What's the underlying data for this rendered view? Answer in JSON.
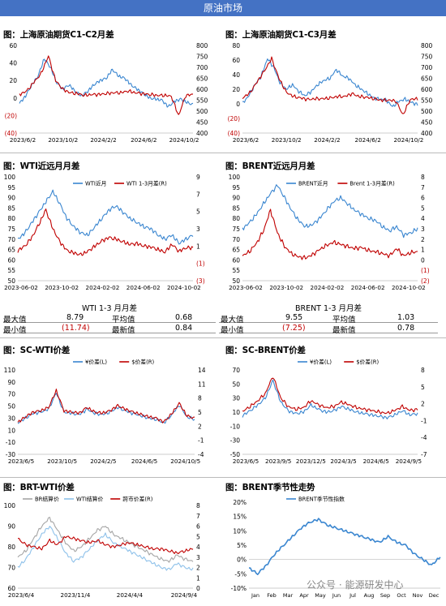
{
  "banner": "原油市场",
  "watermark": "公众号 · 能源研发中心",
  "colors": {
    "blue": "#3a86d0",
    "red": "#c00000",
    "gray": "#a5a5a5",
    "lightblue": "#8ec1ea",
    "banner": "#4472c4"
  },
  "panels": [
    {
      "title": "图：上海原油期货C1-C2月差",
      "chart_data": {
        "type": "line",
        "left_axis": {
          "ticks": [
            "60",
            "40",
            "20",
            "0",
            "(20)",
            "(40)"
          ],
          "min": -40,
          "max": 60,
          "red_ticks": [
            "(20)",
            "(40)"
          ]
        },
        "right_axis": {
          "ticks": [
            "800",
            "750",
            "700",
            "650",
            "600",
            "550",
            "500",
            "450",
            "400"
          ],
          "min": 400,
          "max": 800
        },
        "x_ticks": [
          "2023/6/2",
          "2023/10/2",
          "2024/2/2",
          "2024/6/2",
          "2024/10/2"
        ],
        "series": [
          {
            "axis": "right",
            "color": "blue",
            "start": 530,
            "values": [
              535,
              570,
              620,
              660,
              740,
              700,
              630,
              600,
              620,
              590,
              570,
              590,
              620,
              640,
              650,
              690,
              660,
              650,
              620,
              600,
              580,
              560,
              555,
              550,
              520,
              545,
              555,
              540,
              530
            ]
          },
          {
            "axis": "left",
            "color": "red",
            "start": 3,
            "values": [
              4,
              8,
              18,
              28,
              48,
              20,
              10,
              6,
              5,
              3,
              4,
              4,
              5,
              6,
              6,
              8,
              6,
              5,
              4,
              3,
              3,
              2,
              -20,
              3,
              4
            ]
          }
        ]
      }
    },
    {
      "title": "图：上海原油期货C1-C3月差",
      "chart_data": {
        "type": "line",
        "left_axis": {
          "ticks": [
            "80",
            "60",
            "40",
            "20",
            "0",
            "(20)",
            "(40)"
          ],
          "min": -40,
          "max": 80,
          "red_ticks": [
            "(20)",
            "(40)"
          ]
        },
        "right_axis": {
          "ticks": [
            "800",
            "750",
            "700",
            "650",
            "600",
            "550",
            "500",
            "450",
            "400"
          ],
          "min": 400,
          "max": 800
        },
        "x_ticks": [
          "2023/6/2",
          "2023/10/2",
          "2024/2/2",
          "2024/6/2",
          "2024/10/2"
        ],
        "series": [
          {
            "axis": "right",
            "color": "blue",
            "start": 530,
            "values": [
              535,
              570,
              620,
              660,
              740,
              700,
              630,
              600,
              620,
              590,
              570,
              590,
              620,
              640,
              650,
              690,
              660,
              650,
              620,
              600,
              580,
              560,
              555,
              550,
              520,
              545,
              555,
              540,
              530
            ]
          },
          {
            "axis": "left",
            "color": "red",
            "start": 6,
            "values": [
              8,
              15,
              30,
              45,
              62,
              35,
              16,
              10,
              8,
              6,
              7,
              7,
              8,
              10,
              10,
              14,
              10,
              9,
              7,
              5,
              5,
              4,
              -15,
              6,
              7
            ]
          }
        ]
      }
    },
    {
      "title": "图：WTI近远月月差",
      "chart_data": {
        "type": "line",
        "left_axis": {
          "ticks": [
            "100",
            "95",
            "90",
            "85",
            "80",
            "75",
            "70",
            "65",
            "60",
            "55",
            "50"
          ],
          "min": 50,
          "max": 100
        },
        "right_axis": {
          "ticks": [
            "9",
            "7",
            "5",
            "3",
            "1",
            "(1)",
            "(3)"
          ],
          "min": -3,
          "max": 9,
          "red_ticks": [
            "(1)",
            "(3)"
          ]
        },
        "x_ticks": [
          "2023-06-02",
          "2023-10-02",
          "2024-02-02",
          "2024-06-02",
          "2024-10-02"
        ],
        "legend": [
          "WTI近月",
          "WTI 1-3月差(R)"
        ],
        "series": [
          {
            "name": "WTI近月",
            "axis": "left",
            "color": "blue",
            "values": [
              70,
              73,
              78,
              83,
              88,
              93,
              87,
              80,
              76,
              73,
              72,
              76,
              80,
              84,
              86,
              83,
              80,
              78,
              76,
              75,
              72,
              70,
              72,
              68,
              70,
              72
            ]
          },
          {
            "name": "WTI 1-3月差(R)",
            "axis": "right",
            "color": "red",
            "values": [
              0.5,
              1.0,
              2.0,
              3.5,
              5.2,
              3.0,
              1.5,
              0.5,
              0.2,
              0.0,
              0.4,
              1.0,
              1.6,
              2.0,
              1.8,
              1.5,
              1.2,
              1.3,
              1.0,
              0.9,
              0.6,
              0.3,
              1.2,
              0.4,
              0.8,
              0.8
            ]
          }
        ]
      },
      "stats": {
        "caption": "WTI 1-3 月月差",
        "max_label": "最大值",
        "max": "8.79",
        "avg_label": "平均值",
        "avg": "0.68",
        "min_label": "最小值",
        "min": "(11.74)",
        "latest_label": "最新值",
        "latest": "0.84"
      }
    },
    {
      "title": "图：BRENT近远月月差",
      "chart_data": {
        "type": "line",
        "left_axis": {
          "ticks": [
            "100",
            "95",
            "90",
            "85",
            "80",
            "75",
            "70",
            "65",
            "60",
            "55",
            "50"
          ],
          "min": 50,
          "max": 100
        },
        "right_axis": {
          "ticks": [
            "8",
            "7",
            "6",
            "5",
            "4",
            "3",
            "2",
            "1",
            "0",
            "(1)",
            "(2)"
          ],
          "min": -2,
          "max": 8,
          "red_ticks": [
            "(1)",
            "(2)"
          ]
        },
        "x_ticks": [
          "2023-06-02",
          "2023-10-02",
          "2024-02-02",
          "2024-06-02",
          "2024-10-02"
        ],
        "legend": [
          "BRENT近月",
          "Brent 1-3月差(R)"
        ],
        "series": [
          {
            "name": "BRENT近月",
            "axis": "left",
            "color": "blue",
            "values": [
              75,
              78,
              82,
              87,
              92,
              96,
              90,
              84,
              79,
              76,
              77,
              80,
              84,
              88,
              90,
              87,
              84,
              82,
              80,
              79,
              76,
              74,
              76,
              72,
              73,
              75
            ]
          },
          {
            "name": "Brent 1-3月差(R)",
            "axis": "right",
            "color": "red",
            "values": [
              0.4,
              0.8,
              1.6,
              2.8,
              4.8,
              2.6,
              1.3,
              0.6,
              0.3,
              0.2,
              0.5,
              1.0,
              1.4,
              1.7,
              1.5,
              1.3,
              1.1,
              1.2,
              0.9,
              0.8,
              0.6,
              0.4,
              1.1,
              0.4,
              0.7,
              0.8
            ]
          }
        ]
      },
      "stats": {
        "caption": "BRENT 1-3 月月差",
        "max_label": "最大值",
        "max": "9.55",
        "avg_label": "平均值",
        "avg": "1.03",
        "min_label": "最小值",
        "min": "(7.25)",
        "latest_label": "最新值",
        "latest": "0.78"
      }
    },
    {
      "title": "图：SC-WTI价差",
      "chart_data": {
        "type": "line",
        "left_axis": {
          "ticks": [
            "110",
            "90",
            "70",
            "50",
            "30",
            "10",
            "-10",
            "-30"
          ],
          "min": -30,
          "max": 110
        },
        "right_axis": {
          "ticks": [
            "14",
            "11",
            "8",
            "5",
            "2",
            "-1",
            "-4"
          ],
          "min": -4,
          "max": 14
        },
        "x_ticks": [
          "2023/6/5",
          "2023/10/5",
          "2024/2/5",
          "2024/6/5",
          "2024/10/5"
        ],
        "legend": [
          "¥价差(L)",
          "$价差(R)"
        ],
        "series": [
          {
            "name": "¥价差(L)",
            "axis": "left",
            "color": "blue",
            "values": [
              22,
              30,
              38,
              40,
              45,
              72,
              40,
              38,
              36,
              45,
              38,
              36,
              40,
              48,
              42,
              38,
              34,
              30,
              28,
              22,
              35,
              52,
              32,
              28
            ]
          },
          {
            "name": "$价差(R)",
            "axis": "right",
            "color": "red",
            "values": [
              2.8,
              4.0,
              5.0,
              5.3,
              6.0,
              9.6,
              5.3,
              5.0,
              4.8,
              6.0,
              5.0,
              4.8,
              5.3,
              6.4,
              5.6,
              5.0,
              4.5,
              4.0,
              3.7,
              2.9,
              4.6,
              6.9,
              4.2,
              3.7
            ]
          }
        ]
      }
    },
    {
      "title": "图：SC-BRENT价差",
      "chart_data": {
        "type": "line",
        "left_axis": {
          "ticks": [
            "70",
            "50",
            "30",
            "10",
            "-10",
            "-30",
            "-50"
          ],
          "min": -50,
          "max": 70
        },
        "right_axis": {
          "ticks": [
            "8",
            "5",
            "2",
            "-1",
            "-4",
            "-7"
          ],
          "min": -7,
          "max": 8
        },
        "x_ticks": [
          "2023/6/5",
          "2023/9/5",
          "2023/12/5",
          "2024/3/5",
          "2024/6/5",
          "2024/9/5"
        ],
        "legend": [
          "¥价差(L)",
          "$价差(R)"
        ],
        "series": [
          {
            "name": "¥价差(L)",
            "axis": "left",
            "color": "blue",
            "values": [
              5,
              12,
              20,
              30,
              55,
              25,
              12,
              8,
              10,
              20,
              14,
              10,
              12,
              18,
              14,
              10,
              8,
              6,
              4,
              2,
              6,
              12,
              6,
              8
            ]
          },
          {
            "name": "$价差(R)",
            "axis": "right",
            "color": "red",
            "values": [
              0.6,
              1.5,
              2.5,
              3.8,
              6.9,
              3.1,
              1.5,
              1.0,
              1.3,
              2.5,
              1.8,
              1.3,
              1.5,
              2.3,
              1.8,
              1.3,
              1.0,
              0.8,
              0.5,
              0.3,
              0.8,
              1.5,
              0.8,
              1.0
            ]
          }
        ]
      }
    },
    {
      "title": "图：BRT-WTI价差",
      "chart_data": {
        "type": "line",
        "left_axis": {
          "ticks": [
            "100",
            "90",
            "80",
            "70",
            "60"
          ],
          "min": 60,
          "max": 100
        },
        "right_axis": {
          "ticks": [
            "8",
            "7",
            "6",
            "5",
            "4",
            "3",
            "2",
            "1",
            "0"
          ],
          "min": 0,
          "max": 8
        },
        "x_ticks": [
          "2023/6/4",
          "2023/11/4",
          "2024/4/4",
          "2024/9/4"
        ],
        "legend": [
          "BR结算价",
          "WTI结算价",
          "跨市价差(R)"
        ],
        "series": [
          {
            "name": "BR结算价",
            "axis": "left",
            "color": "gray",
            "values": [
              75,
              78,
              84,
              90,
              94,
              88,
              82,
              78,
              80,
              84,
              88,
              90,
              86,
              84,
              82,
              80,
              78,
              76,
              74,
              73,
              76,
              74,
              73
            ]
          },
          {
            "name": "WTI结算价",
            "axis": "left",
            "color": "lightblue",
            "values": [
              70,
              74,
              80,
              86,
              90,
              84,
              77,
              73,
              75,
              79,
              83,
              86,
              82,
              80,
              78,
              76,
              74,
              72,
              70,
              69,
              72,
              70,
              69
            ]
          },
          {
            "name": "跨市价差(R)",
            "axis": "right",
            "color": "red",
            "values": [
              4.8,
              4.2,
              4.0,
              3.8,
              4.6,
              4.2,
              5.0,
              4.8,
              4.6,
              4.4,
              4.6,
              4.2,
              4.0,
              4.2,
              4.4,
              4.2,
              4.0,
              3.8,
              3.8,
              3.6,
              3.4,
              3.6,
              3.8
            ]
          }
        ]
      }
    },
    {
      "title": "图：BRENT季节性走势",
      "chart_data": {
        "type": "line",
        "left_axis": {
          "ticks": [
            "20%",
            "15%",
            "10%",
            "5%",
            "0%",
            "-5%",
            "-10%"
          ],
          "min": -10,
          "max": 20
        },
        "x_ticks": [
          "Jan",
          "Feb",
          "Mar",
          "Apr",
          "May",
          "Jun",
          "Jul",
          "Aug",
          "Sep",
          "Oct",
          "Nov",
          "Dec"
        ],
        "legend": [
          "BRENT季节性指数"
        ],
        "series": [
          {
            "name": "BRENT季节性指数",
            "axis": "left",
            "color": "blue",
            "values": [
              -3,
              -5,
              -2,
              2,
              5,
              8,
              11,
              13,
              14,
              12,
              11,
              10,
              9,
              8,
              7,
              6,
              8,
              6,
              5,
              2,
              0,
              -2,
              1
            ]
          }
        ]
      }
    }
  ]
}
